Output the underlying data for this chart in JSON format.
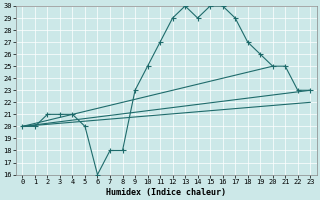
{
  "xlabel": "Humidex (Indice chaleur)",
  "bg_color": "#cce8e8",
  "line_color": "#1e6b6b",
  "grid_color": "#ffffff",
  "ylim": [
    16,
    30
  ],
  "xlim": [
    -0.5,
    23.5
  ],
  "yticks": [
    16,
    17,
    18,
    19,
    20,
    21,
    22,
    23,
    24,
    25,
    26,
    27,
    28,
    29,
    30
  ],
  "xticks": [
    0,
    1,
    2,
    3,
    4,
    5,
    6,
    7,
    8,
    9,
    10,
    11,
    12,
    13,
    14,
    15,
    16,
    17,
    18,
    19,
    20,
    21,
    22,
    23
  ],
  "main_x": [
    0,
    1,
    2,
    3,
    4,
    5,
    6,
    7,
    8,
    9,
    10,
    11,
    12,
    13,
    14,
    15,
    16,
    17,
    18,
    19,
    20,
    21,
    22,
    23
  ],
  "main_y": [
    20,
    20,
    21,
    21,
    21,
    20,
    16,
    18,
    18,
    23,
    25,
    27,
    29,
    30,
    29,
    30,
    30,
    29,
    27,
    26,
    25,
    25,
    23,
    23
  ],
  "line2_x": [
    0,
    23
  ],
  "line2_y": [
    20,
    23
  ],
  "line3_x": [
    0,
    20
  ],
  "line3_y": [
    20,
    25
  ],
  "line4_x": [
    0,
    23
  ],
  "line4_y": [
    20,
    22
  ],
  "tick_fontsize": 5,
  "xlabel_fontsize": 6,
  "lw": 0.8,
  "marker_size": 2.0
}
